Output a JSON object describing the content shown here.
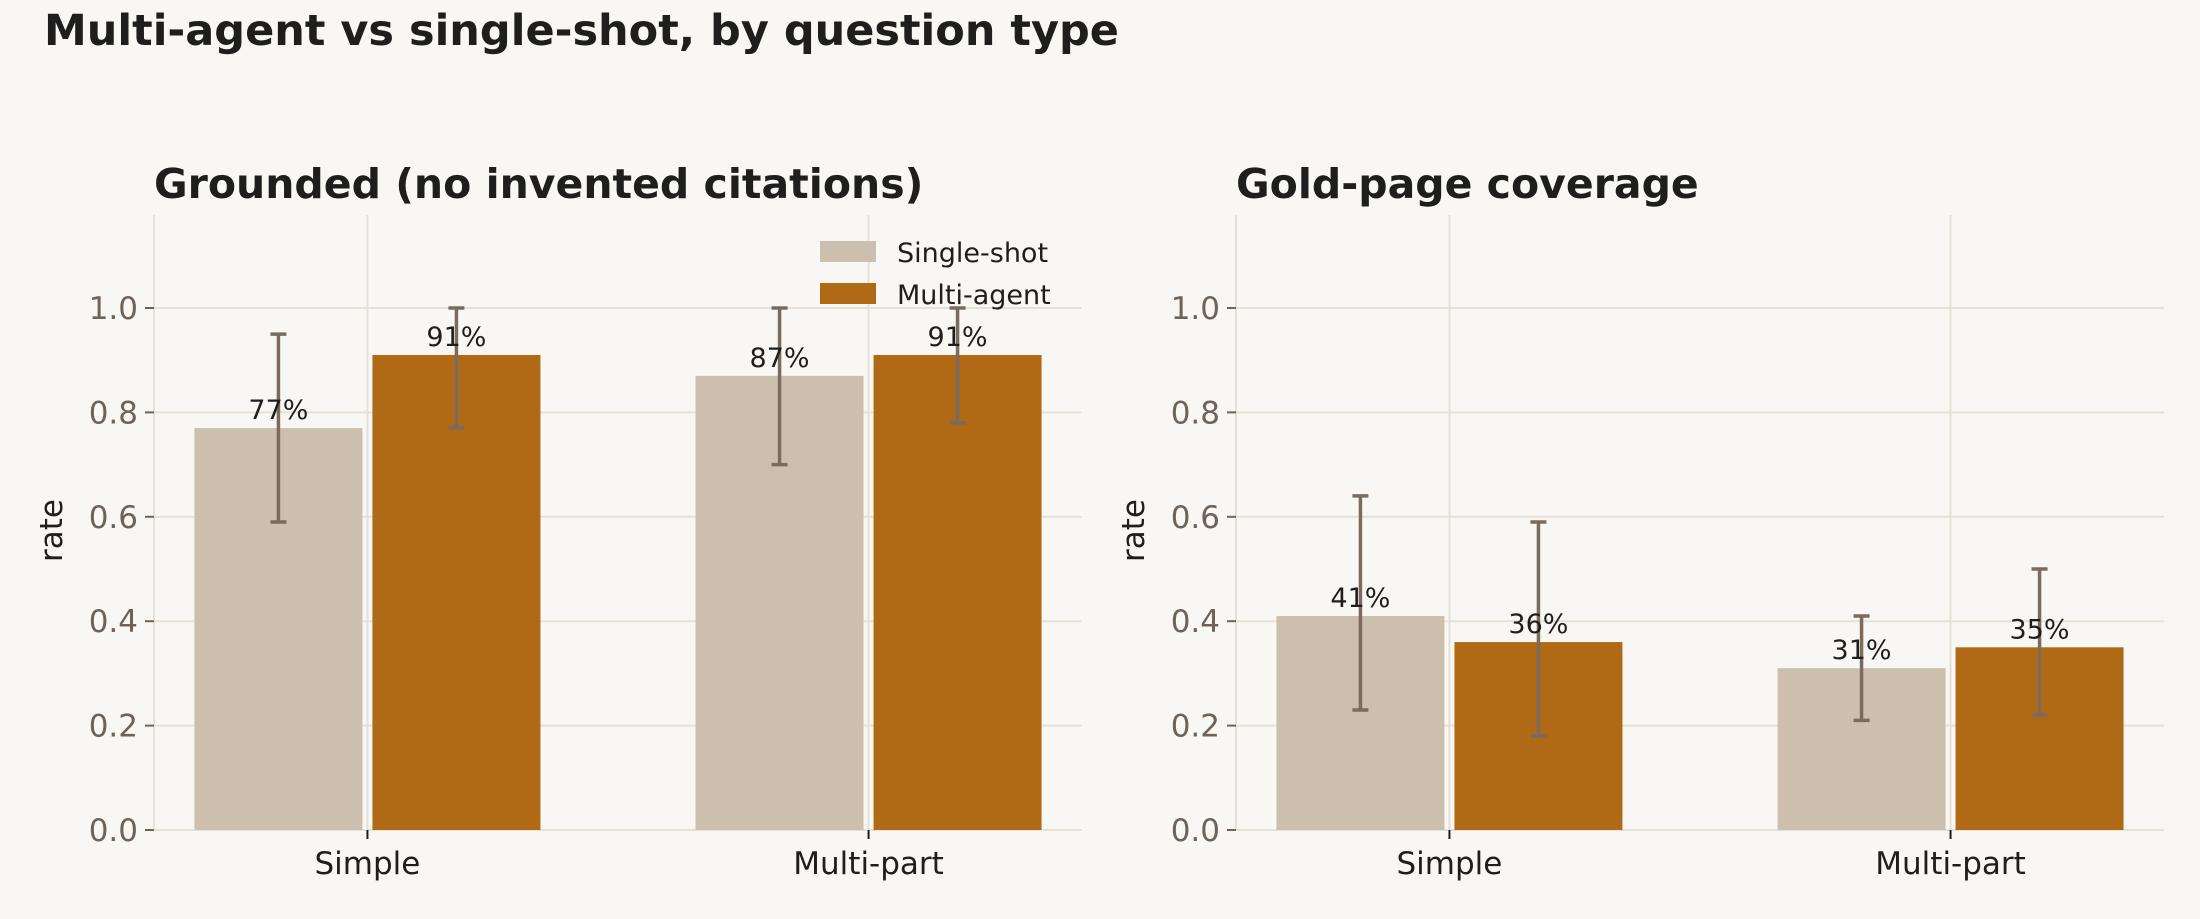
{
  "title": "Multi-agent vs single-shot, by question type",
  "colors": {
    "background": "#f9f7f3",
    "grid": "#e6e1d6",
    "single_shot": "#cdbfae",
    "multi_agent": "#b06a16",
    "error_bar": "#7a6b5e",
    "tick_text": "#6e6259",
    "text": "#1e1e1e"
  },
  "chart_data": [
    {
      "type": "bar",
      "title": "Grounded (no invented citations)",
      "ylabel": "rate",
      "ylim": [
        0,
        1.18
      ],
      "yticks": [
        "0.0",
        "0.2",
        "0.4",
        "0.6",
        "0.8",
        "1.0"
      ],
      "grid": true,
      "legend": "top-right",
      "categories": [
        "Simple",
        "Multi-part"
      ],
      "series": [
        {
          "name": "Single-shot",
          "values": [
            0.77,
            0.87
          ],
          "labels": [
            "77%",
            "87%"
          ],
          "err_low": [
            0.59,
            0.7
          ],
          "err_high": [
            0.95,
            1.0
          ]
        },
        {
          "name": "Multi-agent",
          "values": [
            0.91,
            0.91
          ],
          "labels": [
            "91%",
            "91%"
          ],
          "err_low": [
            0.77,
            0.78
          ],
          "err_high": [
            1.0,
            1.0
          ]
        }
      ]
    },
    {
      "type": "bar",
      "title": "Gold-page coverage",
      "ylabel": "rate",
      "ylim": [
        0,
        1.18
      ],
      "yticks": [
        "0.0",
        "0.2",
        "0.4",
        "0.6",
        "0.8",
        "1.0"
      ],
      "grid": true,
      "legend": "none",
      "categories": [
        "Simple",
        "Multi-part"
      ],
      "series": [
        {
          "name": "Single-shot",
          "values": [
            0.41,
            0.31
          ],
          "labels": [
            "41%",
            "31%"
          ],
          "err_low": [
            0.23,
            0.21
          ],
          "err_high": [
            0.64,
            0.41
          ]
        },
        {
          "name": "Multi-agent",
          "values": [
            0.36,
            0.35
          ],
          "labels": [
            "36%",
            "35%"
          ],
          "err_low": [
            0.18,
            0.22
          ],
          "err_high": [
            0.59,
            0.5
          ]
        }
      ]
    }
  ]
}
